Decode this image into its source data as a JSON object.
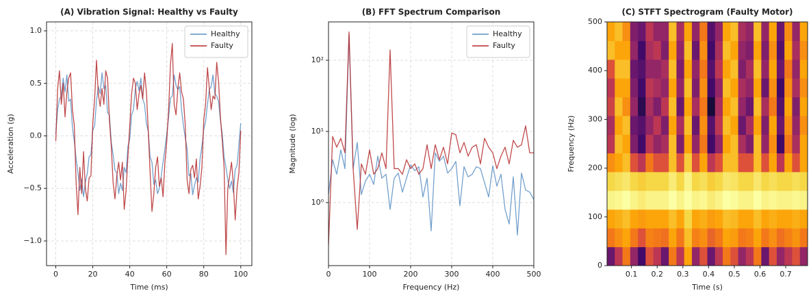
{
  "chart_data": [
    {
      "type": "line",
      "title": "(A) Vibration Signal: Healthy vs Faulty",
      "xlabel": "Time (ms)",
      "ylabel": "Acceleration (g)",
      "x": [
        0,
        1,
        2,
        3,
        4,
        5,
        6,
        7,
        8,
        9,
        10,
        11,
        12,
        13,
        14,
        15,
        16,
        17,
        18,
        19,
        20,
        21,
        22,
        23,
        24,
        25,
        26,
        27,
        28,
        29,
        30,
        31,
        32,
        33,
        34,
        35,
        36,
        37,
        38,
        39,
        40,
        41,
        42,
        43,
        44,
        45,
        46,
        47,
        48,
        49,
        50,
        51,
        52,
        53,
        54,
        55,
        56,
        57,
        58,
        59,
        60,
        61,
        62,
        63,
        64,
        65,
        66,
        67,
        68,
        69,
        70,
        71,
        72,
        73,
        74,
        75,
        76,
        77,
        78,
        79,
        80,
        81,
        82,
        83,
        84,
        85,
        86,
        87,
        88,
        89,
        90,
        91,
        92,
        93,
        94,
        95,
        96,
        97,
        98,
        99,
        100
      ],
      "series": [
        {
          "name": "Healthy",
          "color": "#5b8fc4",
          "values": [
            0.02,
            0.25,
            0.35,
            0.38,
            0.55,
            0.42,
            0.58,
            0.33,
            0.35,
            0.08,
            -0.05,
            -0.22,
            -0.35,
            -0.52,
            -0.41,
            -0.58,
            -0.44,
            -0.36,
            -0.2,
            -0.18,
            0.05,
            0.1,
            0.33,
            0.47,
            0.4,
            0.6,
            0.45,
            0.48,
            0.22,
            0.2,
            -0.06,
            -0.18,
            -0.33,
            -0.35,
            -0.55,
            -0.45,
            -0.52,
            -0.3,
            -0.35,
            -0.1,
            -0.03,
            0.2,
            0.25,
            0.45,
            0.52,
            0.43,
            0.55,
            0.35,
            0.3,
            0.12,
            0.04,
            -0.2,
            -0.25,
            -0.46,
            -0.42,
            -0.55,
            -0.5,
            -0.38,
            -0.25,
            -0.12,
            0.02,
            0.18,
            0.36,
            0.38,
            0.58,
            0.48,
            0.44,
            0.47,
            0.25,
            0.1,
            -0.02,
            -0.12,
            -0.38,
            -0.36,
            -0.56,
            -0.47,
            -0.4,
            -0.44,
            -0.22,
            -0.1,
            0.06,
            0.14,
            0.3,
            0.44,
            0.47,
            0.58,
            0.4,
            0.38,
            0.33,
            0.15,
            0.02,
            -0.2,
            -0.3,
            -0.42,
            -0.5,
            -0.43,
            -0.54,
            -0.32,
            -0.28,
            -0.08,
            0.12
          ]
        },
        {
          "name": "Faulty",
          "color": "#b5292b",
          "values": [
            -0.05,
            0.45,
            0.62,
            0.3,
            0.5,
            0.18,
            0.42,
            0.55,
            0.6,
            0.25,
            0.1,
            -0.45,
            -0.75,
            -0.3,
            -0.55,
            -0.15,
            -0.5,
            -0.62,
            -0.4,
            -0.38,
            0.12,
            0.35,
            0.72,
            0.4,
            0.28,
            0.45,
            0.3,
            0.62,
            0.55,
            0.15,
            -0.1,
            -0.45,
            -0.6,
            -0.38,
            -0.25,
            -0.42,
            -0.25,
            -0.7,
            -0.52,
            -0.2,
            0.1,
            0.4,
            0.55,
            0.5,
            0.25,
            0.4,
            0.48,
            0.35,
            0.6,
            0.42,
            0.05,
            -0.35,
            -0.72,
            -0.55,
            -0.3,
            -0.2,
            -0.48,
            -0.4,
            -0.58,
            -0.25,
            -0.05,
            0.25,
            0.68,
            0.88,
            0.3,
            0.2,
            0.45,
            0.6,
            0.42,
            0.35,
            0.1,
            -0.42,
            -0.55,
            -0.32,
            -0.28,
            -0.4,
            -0.22,
            -0.6,
            -0.48,
            -0.3,
            0.15,
            0.3,
            0.65,
            0.45,
            0.25,
            0.38,
            0.35,
            0.7,
            0.52,
            0.18,
            -0.05,
            -0.3,
            -1.13,
            -0.5,
            -0.38,
            -0.25,
            -0.45,
            -0.8,
            -0.5,
            -0.35,
            0.05
          ]
        }
      ],
      "xlim": [
        -5,
        106
      ],
      "xticks": [
        0,
        20,
        40,
        60,
        80,
        100
      ],
      "ylim": [
        -1.235,
        1.085
      ],
      "yticks": [
        {
          "value": -1,
          "label": "−1.0"
        },
        {
          "value": -0.5,
          "label": "−0.5"
        },
        {
          "value": 0,
          "label": "0.0"
        },
        {
          "value": 0.5,
          "label": "0.5"
        },
        {
          "value": 1,
          "label": "1.0"
        }
      ],
      "grid": true,
      "legend": "upper right"
    },
    {
      "type": "line",
      "title": "(B) FFT Spectrum Comparison",
      "xlabel": "Frequency (Hz)",
      "ylabel": "Magnitude (log)",
      "x": [
        0,
        10,
        20,
        30,
        40,
        50,
        60,
        70,
        80,
        90,
        100,
        110,
        120,
        130,
        140,
        150,
        160,
        170,
        180,
        190,
        200,
        210,
        220,
        230,
        240,
        250,
        260,
        270,
        280,
        290,
        300,
        310,
        320,
        330,
        340,
        350,
        360,
        370,
        380,
        390,
        400,
        410,
        420,
        430,
        440,
        450,
        460,
        470,
        480,
        490,
        500
      ],
      "series": [
        {
          "name": "Healthy",
          "color": "#5b8fc4",
          "values": [
            1.3,
            4,
            2.5,
            5.5,
            3,
            230,
            3,
            7,
            1.3,
            2,
            2.5,
            1.8,
            4.5,
            2.2,
            2.5,
            0.8,
            2.2,
            2.6,
            1.4,
            2.2,
            3.4,
            2.8,
            3.2,
            1.2,
            2.2,
            0.4,
            5,
            3.8,
            4.5,
            2.6,
            3,
            3.8,
            0.9,
            3.2,
            2.3,
            2.5,
            3.2,
            3,
            1.9,
            1.2,
            3.3,
            1.7,
            2.5,
            0.8,
            0.5,
            2.3,
            0.35,
            2.6,
            1.5,
            1.4,
            1.1
          ]
        },
        {
          "name": "Faulty",
          "color": "#b5292b",
          "values": [
            0.25,
            8.5,
            6,
            8,
            5,
            250,
            3,
            0.42,
            3.5,
            2.5,
            5.5,
            2.5,
            3,
            5,
            3,
            140,
            3,
            3,
            2.5,
            4,
            3,
            3.5,
            2.5,
            3,
            6.5,
            3,
            6.5,
            4,
            6,
            3.5,
            9.5,
            9,
            5,
            7,
            4.5,
            6,
            6.5,
            3.5,
            8,
            6,
            5,
            3,
            4.5,
            6,
            3.5,
            7.5,
            6,
            6.5,
            12,
            5,
            5
          ]
        }
      ],
      "xlim": [
        0,
        500
      ],
      "xticks": [
        0,
        100,
        200,
        300,
        400,
        500
      ],
      "ylim": [
        0.13,
        346
      ],
      "ylog": true,
      "yticks": [
        {
          "value": 1,
          "label": "10⁰"
        },
        {
          "value": 10,
          "label": "10¹"
        },
        {
          "value": 100,
          "label": "10²"
        }
      ],
      "grid": true,
      "legend": "upper right"
    },
    {
      "type": "heatmap",
      "title": "(C) STFT Spectrogram (Faulty Motor)",
      "xlabel": "Time (s)",
      "ylabel": "Frequency (Hz)",
      "colormap": "inferno",
      "times": [
        0.02,
        0.05,
        0.08,
        0.11,
        0.14,
        0.17,
        0.2,
        0.23,
        0.26,
        0.29,
        0.32,
        0.35,
        0.38,
        0.41,
        0.44,
        0.47,
        0.5,
        0.53,
        0.56,
        0.59,
        0.62,
        0.65,
        0.68,
        0.71,
        0.74,
        0.77
      ],
      "frequencies": [
        19,
        58,
        96,
        135,
        173,
        212,
        250,
        288,
        327,
        365,
        404,
        442,
        481
      ],
      "z": [
        [
          0.3,
          0.5,
          0.7,
          0.4,
          0.2,
          0.6,
          0.5,
          0.3,
          0.7,
          0.5,
          0.8,
          0.4,
          0.6,
          0.3,
          0.5,
          0.7,
          0.6,
          0.4,
          0.5,
          0.7,
          0.3,
          0.6,
          0.4,
          0.5,
          0.6,
          0.4
        ],
        [
          0.7,
          0.75,
          0.8,
          0.7,
          0.6,
          0.72,
          0.7,
          0.68,
          0.8,
          0.7,
          0.85,
          0.72,
          0.75,
          0.65,
          0.7,
          0.8,
          0.78,
          0.7,
          0.72,
          0.8,
          0.7,
          0.75,
          0.68,
          0.72,
          0.76,
          0.7
        ],
        [
          0.8,
          0.82,
          0.85,
          0.8,
          0.78,
          0.8,
          0.8,
          0.8,
          0.85,
          0.8,
          0.9,
          0.8,
          0.82,
          0.78,
          0.8,
          0.85,
          0.84,
          0.8,
          0.8,
          0.85,
          0.8,
          0.82,
          0.8,
          0.8,
          0.82,
          0.8
        ],
        [
          0.97,
          0.98,
          1,
          0.97,
          0.95,
          0.97,
          0.97,
          0.97,
          1,
          0.97,
          1,
          0.97,
          0.98,
          0.95,
          0.97,
          1,
          0.99,
          0.97,
          0.97,
          1,
          0.97,
          0.98,
          0.97,
          0.97,
          0.98,
          0.97
        ],
        [
          0.9,
          0.92,
          0.94,
          0.9,
          0.88,
          0.9,
          0.9,
          0.9,
          0.95,
          0.9,
          0.97,
          0.9,
          0.92,
          0.88,
          0.9,
          0.94,
          0.93,
          0.9,
          0.9,
          0.94,
          0.9,
          0.92,
          0.9,
          0.9,
          0.92,
          0.9
        ],
        [
          0.75,
          0.8,
          0.85,
          0.6,
          0.5,
          0.7,
          0.6,
          0.6,
          0.85,
          0.6,
          0.88,
          0.6,
          0.8,
          0.5,
          0.6,
          0.85,
          0.85,
          0.6,
          0.6,
          0.85,
          0.6,
          0.8,
          0.5,
          0.8,
          0.6,
          0.8
        ],
        [
          0.5,
          0.85,
          0.8,
          0.35,
          0.2,
          0.5,
          0.4,
          0.45,
          0.85,
          0.35,
          0.8,
          0.4,
          0.7,
          0.2,
          0.4,
          0.8,
          0.85,
          0.45,
          0.35,
          0.85,
          0.4,
          0.75,
          0.2,
          0.7,
          0.45,
          0.8
        ],
        [
          0.45,
          0.8,
          0.85,
          0.3,
          0.25,
          0.4,
          0.5,
          0.35,
          0.8,
          0.45,
          0.85,
          0.3,
          0.75,
          0.25,
          0.5,
          0.85,
          0.8,
          0.3,
          0.45,
          0.8,
          0.35,
          0.8,
          0.3,
          0.75,
          0.4,
          0.75
        ],
        [
          0.55,
          0.85,
          0.75,
          0.4,
          0.15,
          0.45,
          0.35,
          0.5,
          0.85,
          0.3,
          0.8,
          0.45,
          0.7,
          0.1,
          0.45,
          0.8,
          0.85,
          0.4,
          0.3,
          0.85,
          0.45,
          0.7,
          0.25,
          0.8,
          0.35,
          0.8
        ],
        [
          0.5,
          0.8,
          0.8,
          0.35,
          0.2,
          0.5,
          0.45,
          0.4,
          0.8,
          0.4,
          0.85,
          0.35,
          0.75,
          0.2,
          0.4,
          0.85,
          0.8,
          0.45,
          0.4,
          0.8,
          0.3,
          0.75,
          0.2,
          0.75,
          0.45,
          0.75
        ],
        [
          0.6,
          0.85,
          0.85,
          0.3,
          0.25,
          0.4,
          0.4,
          0.45,
          0.85,
          0.35,
          0.8,
          0.4,
          0.7,
          0.25,
          0.5,
          0.8,
          0.85,
          0.35,
          0.45,
          0.85,
          0.4,
          0.8,
          0.3,
          0.7,
          0.4,
          0.8
        ],
        [
          0.85,
          0.8,
          0.8,
          0.4,
          0.2,
          0.45,
          0.5,
          0.35,
          0.8,
          0.4,
          0.85,
          0.3,
          0.75,
          0.2,
          0.45,
          0.85,
          0.8,
          0.4,
          0.35,
          0.8,
          0.35,
          0.75,
          0.25,
          0.8,
          0.45,
          0.75
        ],
        [
          0.8,
          0.85,
          0.75,
          0.35,
          0.3,
          0.5,
          0.4,
          0.4,
          0.85,
          0.45,
          0.8,
          0.4,
          0.7,
          0.25,
          0.4,
          0.8,
          0.85,
          0.45,
          0.4,
          0.85,
          0.4,
          0.8,
          0.3,
          0.75,
          0.4,
          0.8
        ]
      ],
      "xlim": [
        0.005,
        0.785
      ],
      "xticks": [
        0.1,
        0.2,
        0.3,
        0.4,
        0.5,
        0.6,
        0.7
      ],
      "ylim": [
        0,
        500
      ],
      "yticks": [
        0,
        100,
        200,
        300,
        400,
        500
      ]
    }
  ]
}
